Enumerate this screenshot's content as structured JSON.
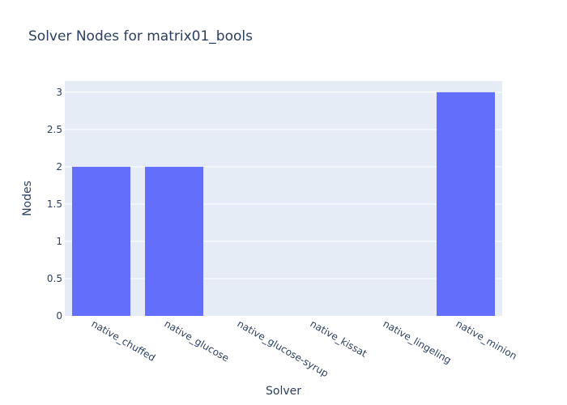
{
  "chart_data": {
    "type": "bar",
    "title": "Solver Nodes for matrix01_bools",
    "xlabel": "Solver",
    "ylabel": "Nodes",
    "categories": [
      "native_chuffed",
      "native_glucose",
      "native_glucose-syrup",
      "native_kissat",
      "native_lingeling",
      "native_minion"
    ],
    "values": [
      2,
      2,
      0,
      0,
      0,
      3
    ],
    "ylim": [
      0,
      3.15
    ],
    "yticks": [
      0,
      0.5,
      1,
      1.5,
      2,
      2.5,
      3
    ],
    "ytick_labels": [
      "0",
      "0.5",
      "1",
      "1.5",
      "2",
      "2.5",
      "3"
    ],
    "grid": true,
    "colors": {
      "bar": "#636efa",
      "plot_bg": "#e5ecf6",
      "grid": "#ffffff",
      "text": "#2a3f5f"
    }
  }
}
